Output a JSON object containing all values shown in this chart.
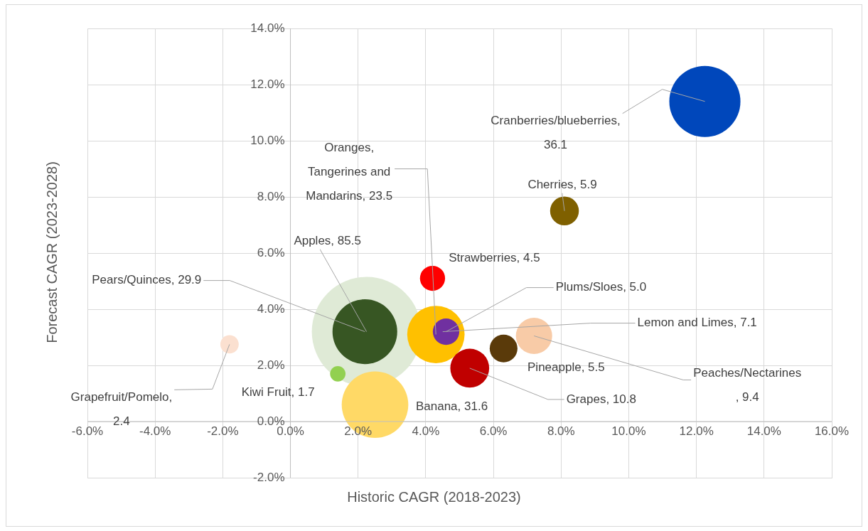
{
  "chart_data": {
    "type": "bubble",
    "xlabel": "Historic CAGR (2018-2023)",
    "ylabel": "Forecast CAGR (2023-2028)",
    "x": [
      2.25,
      2.2,
      2.5,
      1.4,
      -1.8,
      4.2,
      4.3,
      4.6,
      5.3,
      6.3,
      7.2,
      8.1,
      12.25
    ],
    "values": [
      3.2,
      3.2,
      0.6,
      1.7,
      2.75,
      5.1,
      3.1,
      3.2,
      1.9,
      2.6,
      3.05,
      7.5,
      11.4
    ],
    "sizes": [
      85.5,
      29.9,
      31.6,
      1.7,
      2.4,
      4.5,
      23.5,
      5.0,
      10.8,
      5.5,
      9.4,
      5.9,
      36.1
    ],
    "colors": [
      "#dfead6",
      "#375623",
      "#ffd966",
      "#92d050",
      "#fbe0d0",
      "#ff0000",
      "#ffc000",
      "#7030a0",
      "#c00000",
      "#5a3a0a",
      "#f8cba7",
      "#7f6000",
      "#0047bb"
    ],
    "xlim": [
      -6,
      16
    ],
    "xticks": [
      {
        "value": -6,
        "label": "-6.0%"
      },
      {
        "value": -4,
        "label": "-4.0%"
      },
      {
        "value": -2,
        "label": "-2.0%"
      },
      {
        "value": 0,
        "label": "0.0%"
      },
      {
        "value": 2,
        "label": "2.0%"
      },
      {
        "value": 4,
        "label": "4.0%"
      },
      {
        "value": 6,
        "label": "6.0%"
      },
      {
        "value": 8,
        "label": "8.0%"
      },
      {
        "value": 10,
        "label": "10.0%"
      },
      {
        "value": 12,
        "label": "12.0%"
      },
      {
        "value": 14,
        "label": "14.0%"
      },
      {
        "value": 16,
        "label": "16.0%"
      }
    ],
    "ylim": [
      -2,
      14
    ],
    "yticks": [
      {
        "value": -2,
        "label": "-2.0%"
      },
      {
        "value": 0,
        "label": "0.0%"
      },
      {
        "value": 2,
        "label": "2.0%"
      },
      {
        "value": 4,
        "label": "4.0%"
      },
      {
        "value": 6,
        "label": "6.0%"
      },
      {
        "value": 8,
        "label": "8.0%"
      },
      {
        "value": 10,
        "label": "10.0%"
      },
      {
        "value": 12,
        "label": "12.0%"
      },
      {
        "value": 14,
        "label": "14.0%"
      }
    ],
    "grid": true,
    "annotations": [
      {
        "text": "Lemon and Limes, 7.1",
        "x": 4.5,
        "y": 3.2
      }
    ],
    "value_labels": [
      "Apples, 85.5",
      "Pears/Quinces, 29.9",
      "Banana, 31.6",
      "Kiwi Fruit, 1.7",
      "Grapefruit/Pomelo,\n2.4",
      "Strawberries, 4.5",
      "Oranges,\nTangerines and\nMandarins, 23.5",
      "Plums/Sloes, 5.0",
      "Grapes, 10.8",
      "Pineapple, 5.5",
      "Peaches/Nectarines\n, 9.4",
      "Cherries, 5.9",
      "Cranberries/blueberries,\n36.1"
    ]
  }
}
